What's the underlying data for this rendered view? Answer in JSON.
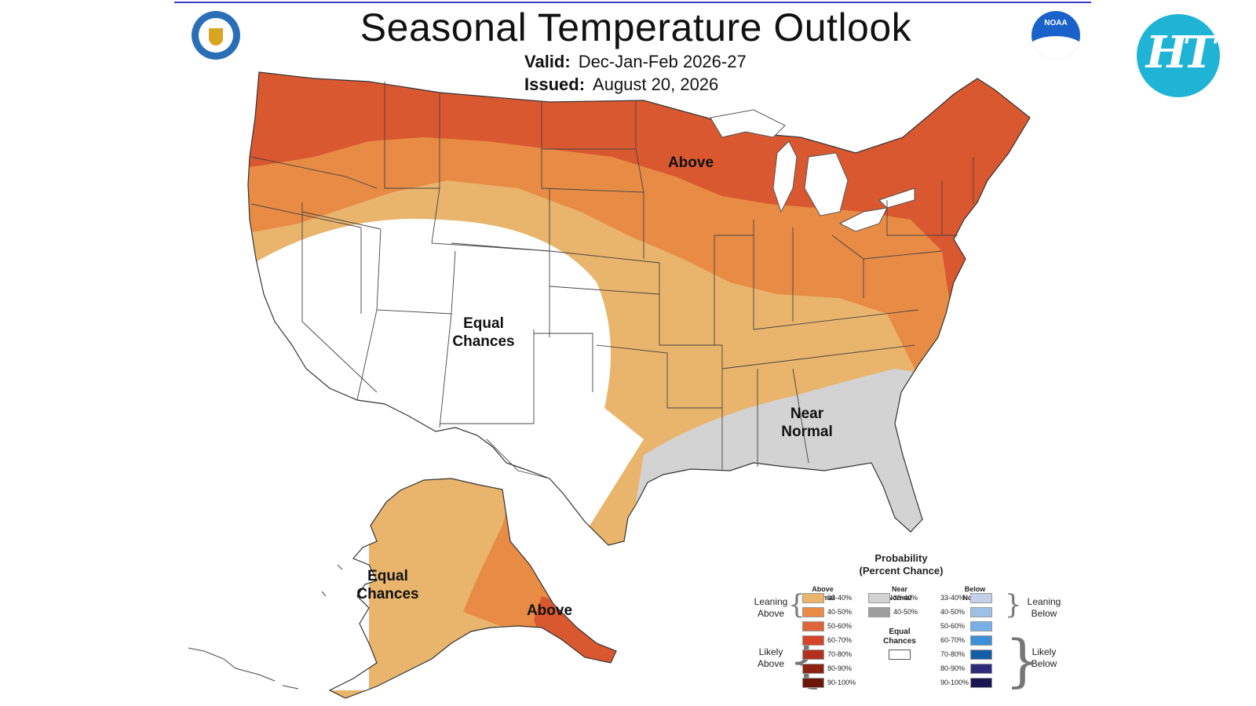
{
  "header": {
    "title": "Seasonal Temperature Outlook",
    "valid_label": "Valid:",
    "valid_value": "Dec-Jan-Feb 2026-27",
    "issued_label": "Issued:",
    "issued_value": "August 20, 2026"
  },
  "logos": {
    "left": "commerce-seal",
    "right": "noaa-logo",
    "noaa_text": "NOAA",
    "brand": "HT"
  },
  "map_labels": {
    "above_main": "Above",
    "equal_main_1": "Equal",
    "equal_main_2": "Chances",
    "near_1": "Near",
    "near_2": "Normal",
    "ak_equal_1": "Equal",
    "ak_equal_2": "Chances",
    "ak_above": "Above"
  },
  "legend": {
    "title_1": "Probability",
    "title_2": "(Percent Chance)",
    "above_head_1": "Above",
    "above_head_2": "Normal",
    "near_head_1": "Near",
    "near_head_2": "Normal",
    "below_head_1": "Below",
    "below_head_2": "Normal",
    "leaning_above_1": "Leaning",
    "leaning_above_2": "Above",
    "likely_above_1": "Likely",
    "likely_above_2": "Above",
    "leaning_below_1": "Leaning",
    "leaning_below_2": "Below",
    "likely_below_1": "Likely",
    "likely_below_2": "Below",
    "equal_1": "Equal",
    "equal_2": "Chances",
    "above": [
      {
        "range": "33-40%",
        "color": "#e9b46b"
      },
      {
        "range": "40-50%",
        "color": "#e78b45"
      },
      {
        "range": "50-60%",
        "color": "#e0643a"
      },
      {
        "range": "60-70%",
        "color": "#d4432a"
      },
      {
        "range": "70-80%",
        "color": "#b3301c"
      },
      {
        "range": "80-90%",
        "color": "#8b2310"
      },
      {
        "range": "90-100%",
        "color": "#6b1608"
      }
    ],
    "near": [
      {
        "range": "33-40%",
        "color": "#d3d3d3"
      },
      {
        "range": "40-50%",
        "color": "#9e9e9e"
      }
    ],
    "below": [
      {
        "range": "33-40%",
        "color": "#c4d0ea"
      },
      {
        "range": "40-50%",
        "color": "#9fc0e6"
      },
      {
        "range": "50-60%",
        "color": "#76b0e6"
      },
      {
        "range": "60-70%",
        "color": "#3d8fd6"
      },
      {
        "range": "70-80%",
        "color": "#145ea8"
      },
      {
        "range": "80-90%",
        "color": "#2d2a7a"
      },
      {
        "range": "90-100%",
        "color": "#1a1652"
      }
    ]
  }
}
